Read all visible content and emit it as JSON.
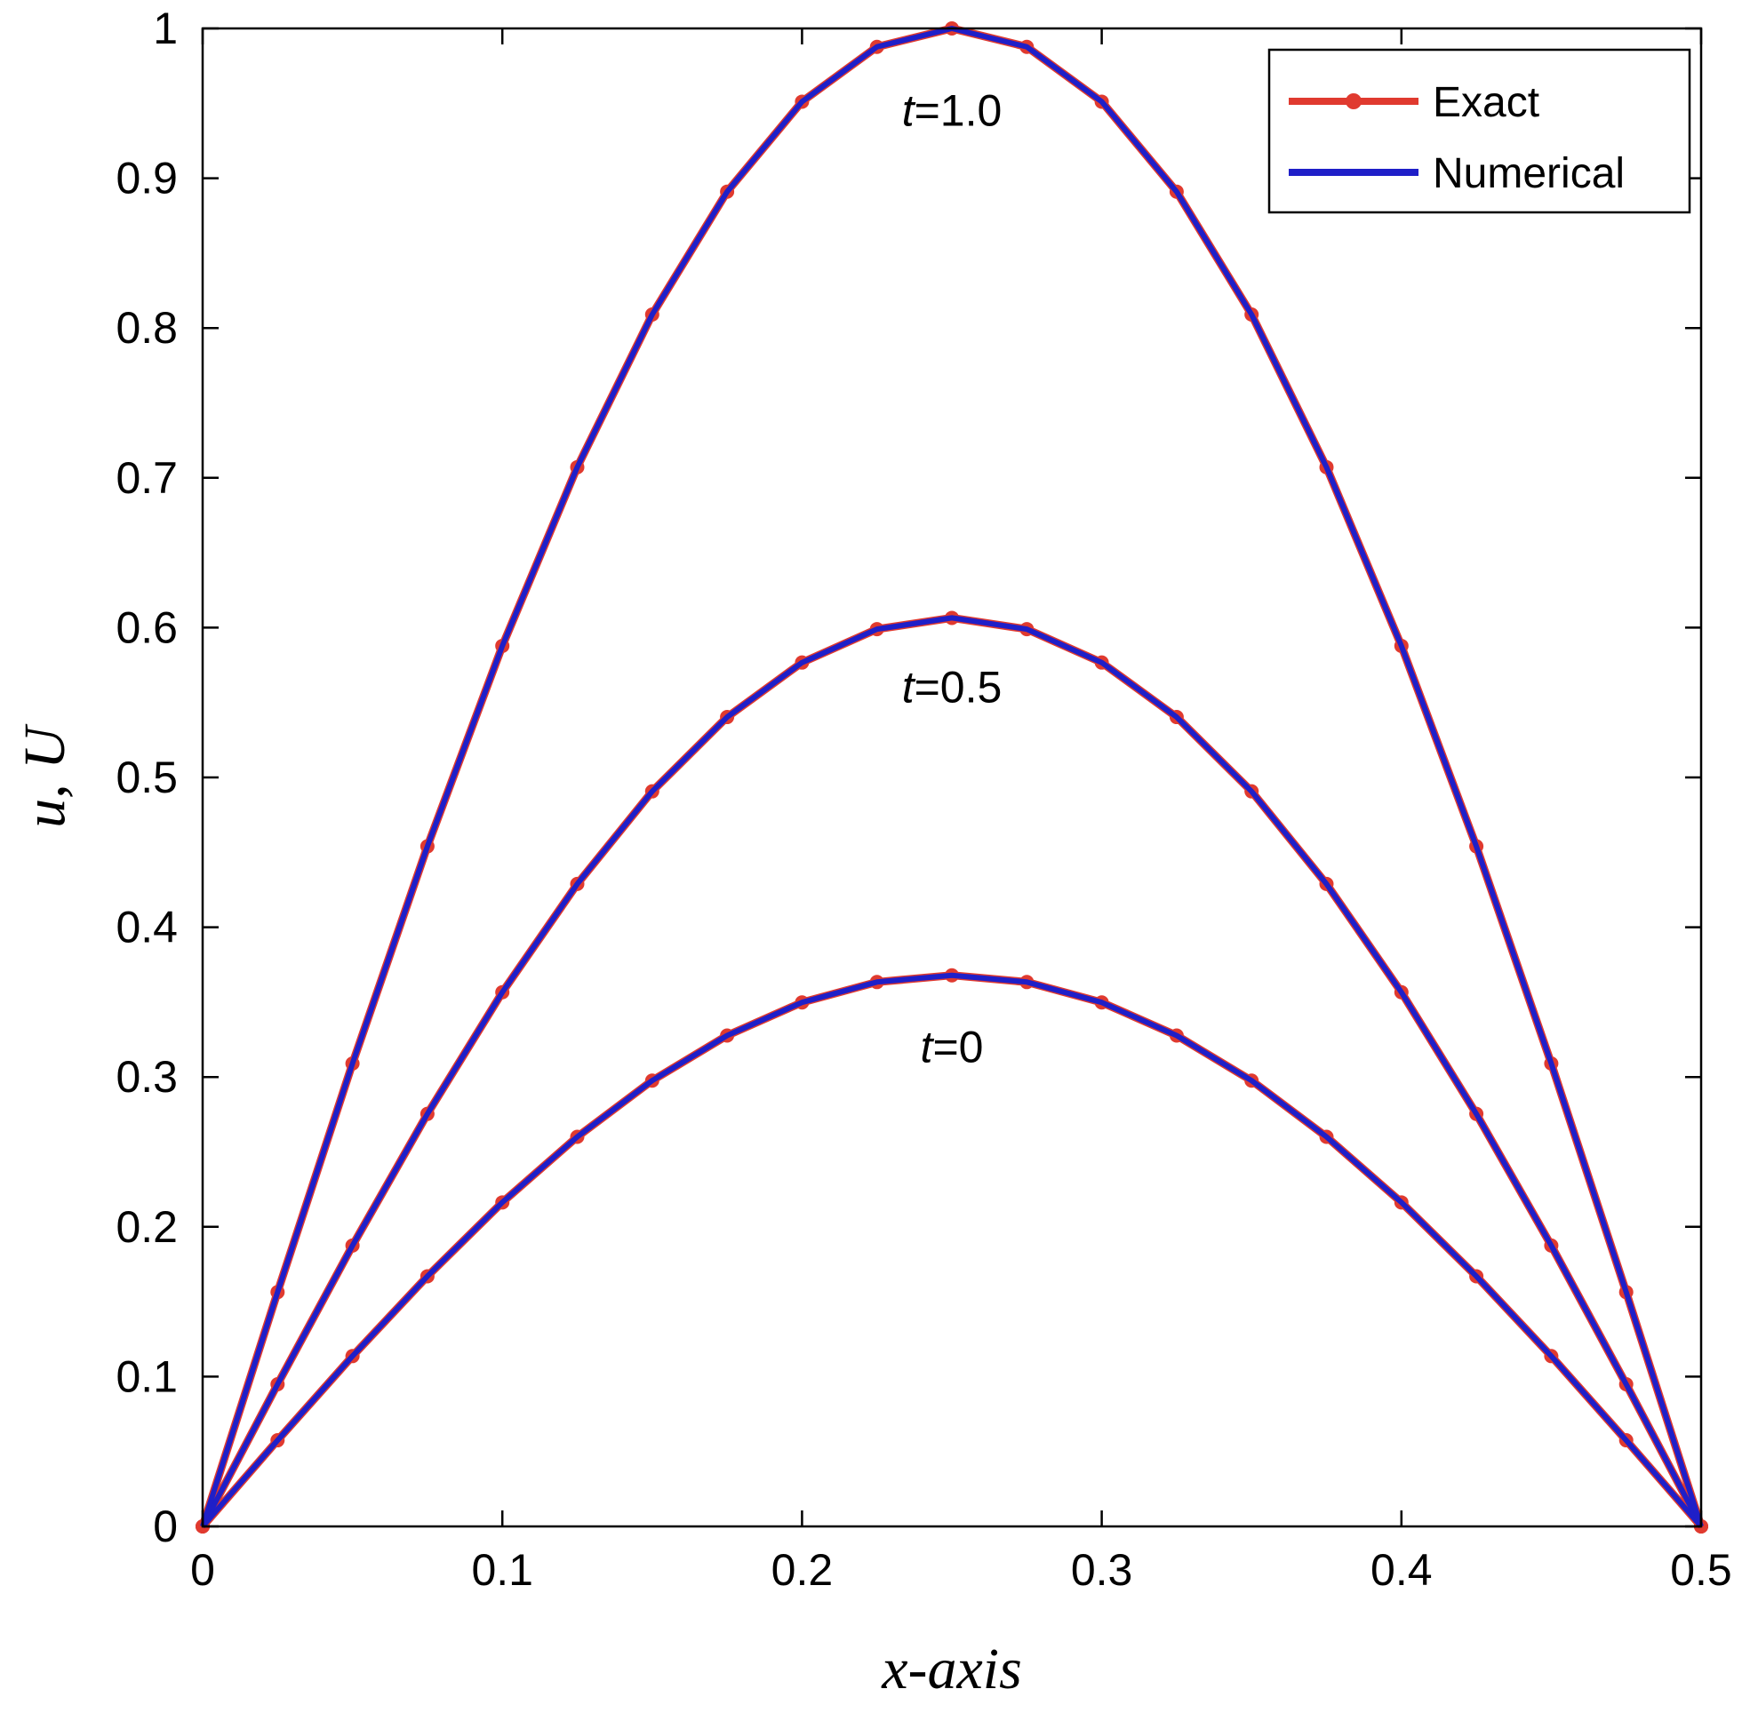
{
  "chart_data": {
    "type": "line",
    "xlabel": "x-axis",
    "ylabel": "u, U",
    "xlim": [
      0,
      0.5
    ],
    "ylim": [
      0,
      1
    ],
    "xticks": [
      "0",
      "0.1",
      "0.2",
      "0.3",
      "0.4",
      "0.5"
    ],
    "xtick_values": [
      0,
      0.1,
      0.2,
      0.3,
      0.4,
      0.5
    ],
    "yticks": [
      "0",
      "0.1",
      "0.2",
      "0.3",
      "0.4",
      "0.5",
      "0.6",
      "0.7",
      "0.8",
      "0.9",
      "1"
    ],
    "ytick_values": [
      0,
      0.1,
      0.2,
      0.3,
      0.4,
      0.5,
      0.6,
      0.7,
      0.8,
      0.9,
      1
    ],
    "grid": false,
    "legend_position": "top-right",
    "legend": [
      {
        "name": "Exact",
        "color": "#e03a2f",
        "marker": "circle"
      },
      {
        "name": "Numerical",
        "color": "#1f1fc8",
        "marker": "none"
      }
    ],
    "annotations": [
      {
        "var": "t",
        "text": "=1.0",
        "x": 0.25,
        "y": 0.935
      },
      {
        "var": "t",
        "text": "=0.5",
        "x": 0.25,
        "y": 0.55
      },
      {
        "var": "t",
        "text": "=0",
        "x": 0.25,
        "y": 0.31
      }
    ],
    "x": [
      0,
      0.025,
      0.05,
      0.075,
      0.1,
      0.125,
      0.15,
      0.175,
      0.2,
      0.225,
      0.25,
      0.275,
      0.3,
      0.325,
      0.35,
      0.375,
      0.4,
      0.425,
      0.45,
      0.475,
      0.5
    ],
    "series": [
      {
        "label": "t=0",
        "values": [
          0,
          0.0575,
          0.1137,
          0.167,
          0.2163,
          0.2601,
          0.2976,
          0.3277,
          0.3498,
          0.3634,
          0.3679,
          0.3634,
          0.3498,
          0.3277,
          0.2976,
          0.2601,
          0.2163,
          0.167,
          0.1137,
          0.0575,
          0
        ]
      },
      {
        "label": "t=0.5",
        "values": [
          0,
          0.0949,
          0.1875,
          0.2754,
          0.3566,
          0.4289,
          0.4907,
          0.5403,
          0.5767,
          0.599,
          0.6065,
          0.599,
          0.5767,
          0.5403,
          0.4907,
          0.4289,
          0.3566,
          0.2754,
          0.1875,
          0.0949,
          0
        ]
      },
      {
        "label": "t=1.0",
        "values": [
          0,
          0.1564,
          0.309,
          0.454,
          0.5878,
          0.7071,
          0.809,
          0.891,
          0.9511,
          0.9877,
          1.0,
          0.9877,
          0.9511,
          0.891,
          0.809,
          0.7071,
          0.5878,
          0.454,
          0.309,
          0.1564,
          0
        ]
      }
    ]
  }
}
